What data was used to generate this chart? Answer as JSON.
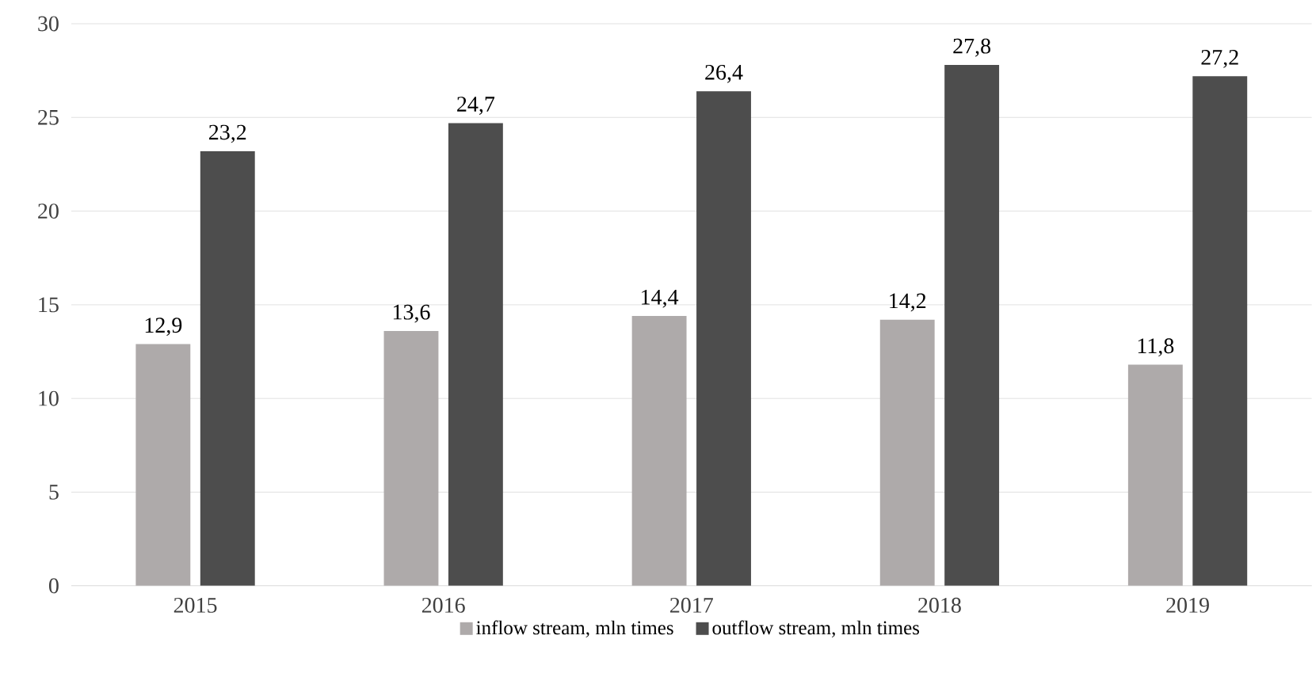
{
  "chart_data": {
    "type": "bar",
    "categories": [
      "2015",
      "2016",
      "2017",
      "2018",
      "2019"
    ],
    "series": [
      {
        "name": "inflow stream, mln times",
        "color": "#aeaaaa",
        "values": [
          12.9,
          13.6,
          14.4,
          14.2,
          11.8
        ],
        "value_labels": [
          "12,9",
          "13,6",
          "14,4",
          "14,2",
          "11,8"
        ]
      },
      {
        "name": "outflow stream, mln times",
        "color": "#4d4d4d",
        "values": [
          23.2,
          24.7,
          26.4,
          27.8,
          27.2
        ],
        "value_labels": [
          "23,2",
          "24,7",
          "26,4",
          "27,8",
          "27,2"
        ]
      }
    ],
    "ylim": [
      0,
      30
    ],
    "yticks": [
      0,
      5,
      10,
      15,
      20,
      25,
      30
    ],
    "grid": "y",
    "legend": "bottom"
  }
}
